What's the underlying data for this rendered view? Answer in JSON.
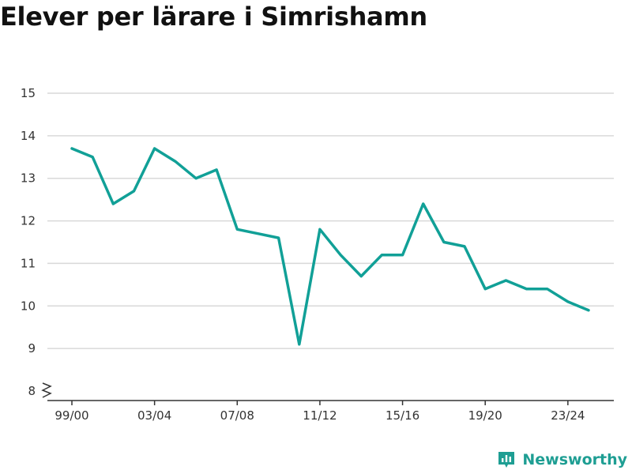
{
  "title": "Elever per lärare i Simrishamn",
  "brand": {
    "name": "Newsworthy",
    "icon": "newsworthy-logo-icon",
    "color": "#1e9e93"
  },
  "chart_data": {
    "type": "line",
    "title": "Elever per lärare i Simrishamn",
    "xlabel": "",
    "ylabel": "",
    "ylim": [
      8,
      15
    ],
    "yticks": [
      8,
      9,
      10,
      11,
      12,
      13,
      14,
      15
    ],
    "y_axis_break": true,
    "grid": true,
    "legend": "none",
    "x": [
      "99/00",
      "00/01",
      "01/02",
      "02/03",
      "03/04",
      "04/05",
      "05/06",
      "06/07",
      "07/08",
      "08/09",
      "09/10",
      "10/11",
      "11/12",
      "12/13",
      "13/14",
      "14/15",
      "15/16",
      "16/17",
      "17/18",
      "18/19",
      "19/20",
      "20/21",
      "21/22",
      "22/23",
      "23/24",
      "24/25"
    ],
    "xtick_labels": [
      "99/00",
      "03/04",
      "07/08",
      "11/12",
      "15/16",
      "19/20",
      "23/24"
    ],
    "series": [
      {
        "color": "#11a097",
        "values": [
          13.7,
          13.5,
          12.4,
          12.7,
          13.7,
          13.4,
          13.0,
          13.2,
          11.8,
          11.7,
          11.6,
          9.1,
          11.8,
          11.2,
          10.7,
          11.2,
          11.2,
          12.4,
          11.5,
          11.4,
          10.4,
          10.6,
          10.4,
          10.4,
          10.1,
          9.9
        ]
      }
    ]
  }
}
